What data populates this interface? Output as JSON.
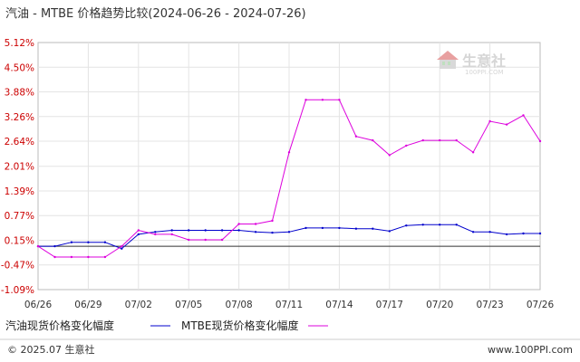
{
  "chart_data": {
    "type": "line",
    "title": "汽油 - MTBE 价格趋势比较(2024-06-26 - 2024-07-26)",
    "x": [
      "06/26",
      "06/27",
      "06/28",
      "06/29",
      "06/30",
      "07/01",
      "07/02",
      "07/03",
      "07/04",
      "07/05",
      "07/06",
      "07/07",
      "07/08",
      "07/09",
      "07/10",
      "07/11",
      "07/12",
      "07/13",
      "07/14",
      "07/15",
      "07/16",
      "07/17",
      "07/18",
      "07/19",
      "07/20",
      "07/21",
      "07/22",
      "07/23",
      "07/24",
      "07/25",
      "07/26"
    ],
    "xticks": [
      "06/26",
      "06/29",
      "07/02",
      "07/05",
      "07/08",
      "07/11",
      "07/14",
      "07/17",
      "07/20",
      "07/23",
      "07/26"
    ],
    "yticks": [
      "5.12%",
      "4.50%",
      "3.88%",
      "3.26%",
      "2.64%",
      "2.01%",
      "1.39%",
      "0.77%",
      "0.15%",
      "-0.47%",
      "-1.09%"
    ],
    "ylim": [
      -1.09,
      5.12
    ],
    "zero_line": 0.0,
    "series": [
      {
        "name": "汽油现货价格变化幅度",
        "color": "#0000cc",
        "values": [
          0.0,
          0.0,
          0.1,
          0.1,
          0.1,
          -0.06,
          0.3,
          0.36,
          0.4,
          0.4,
          0.4,
          0.4,
          0.4,
          0.36,
          0.34,
          0.36,
          0.46,
          0.46,
          0.46,
          0.44,
          0.44,
          0.38,
          0.52,
          0.54,
          0.54,
          0.54,
          0.36,
          0.36,
          0.3,
          0.32,
          0.32
        ]
      },
      {
        "name": "MTBE现货价格变化幅度",
        "color": "#dd00dd",
        "values": [
          0.0,
          -0.27,
          -0.27,
          -0.27,
          -0.27,
          0.0,
          0.4,
          0.3,
          0.3,
          0.16,
          0.16,
          0.16,
          0.56,
          0.56,
          0.64,
          2.36,
          3.68,
          3.68,
          3.68,
          2.76,
          2.66,
          2.29,
          2.53,
          2.66,
          2.66,
          2.66,
          2.36,
          3.14,
          3.06,
          3.29,
          2.64
        ]
      }
    ],
    "grid": true
  },
  "legend": {
    "gasoline_label": "汽油现货价格变化幅度",
    "mtbe_label": "MTBE现货价格变化幅度"
  },
  "watermark": {
    "main": "生意社",
    "sub": "100PPI.COM"
  },
  "footer": {
    "copyright": "© 2025.07 生意社",
    "url": "www.100PPI.com"
  },
  "colors": {
    "gasoline": "#0000cc",
    "mtbe": "#dd00dd",
    "ytick": "#cc0000",
    "grid": "#e4e4e4"
  }
}
